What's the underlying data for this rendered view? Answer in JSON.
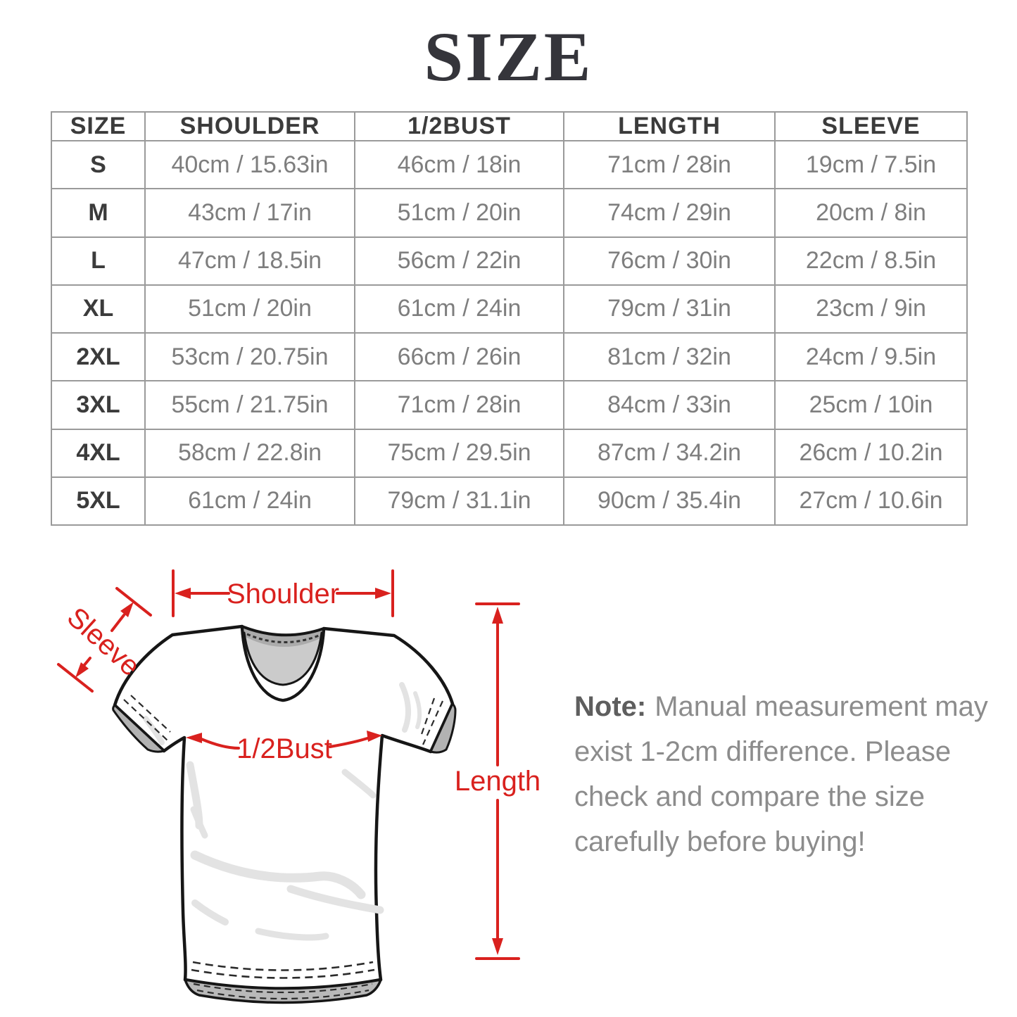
{
  "title": "SIZE",
  "colors": {
    "accent": "#d9211e",
    "header_text": "#3b3b3b",
    "cell_text": "#7e7e7e",
    "table_border": "#9a9a9a",
    "note_text": "#8c8c8c"
  },
  "size_table": {
    "headers": [
      "SIZE",
      "SHOULDER",
      "1/2BUST",
      "LENGTH",
      "SLEEVE"
    ],
    "rows": [
      {
        "cells": [
          "S",
          "40cm / 15.63in",
          "46cm / 18in",
          "71cm / 28in",
          "19cm / 7.5in"
        ]
      },
      {
        "cells": [
          "M",
          "43cm / 17in",
          "51cm / 20in",
          "74cm / 29in",
          "20cm / 8in"
        ]
      },
      {
        "cells": [
          "L",
          "47cm / 18.5in",
          "56cm / 22in",
          "76cm / 30in",
          "22cm / 8.5in"
        ]
      },
      {
        "cells": [
          "XL",
          "51cm / 20in",
          "61cm / 24in",
          "79cm / 31in",
          "23cm / 9in"
        ]
      },
      {
        "cells": [
          "2XL",
          "53cm / 20.75in",
          "66cm / 26in",
          "81cm / 32in",
          "24cm / 9.5in"
        ]
      },
      {
        "cells": [
          "3XL",
          "55cm / 21.75in",
          "71cm / 28in",
          "84cm / 33in",
          "25cm / 10in"
        ]
      },
      {
        "cells": [
          "4XL",
          "58cm / 22.8in",
          "75cm / 29.5in",
          "87cm / 34.2in",
          "26cm / 10.2in"
        ]
      },
      {
        "cells": [
          "5XL",
          "61cm / 24in",
          "79cm / 31.1in",
          "90cm / 35.4in",
          "27cm / 10.6in"
        ]
      }
    ]
  },
  "diagram": {
    "labels": {
      "shoulder": "Shoulder",
      "sleeve": "Sleeve",
      "bust": "1/2Bust",
      "length": "Length"
    }
  },
  "note": {
    "prefix": "Note:",
    "lines": [
      "Manual measurement may",
      "exist 1-2cm difference. Please",
      "check and compare the size",
      "carefully before buying!"
    ]
  }
}
